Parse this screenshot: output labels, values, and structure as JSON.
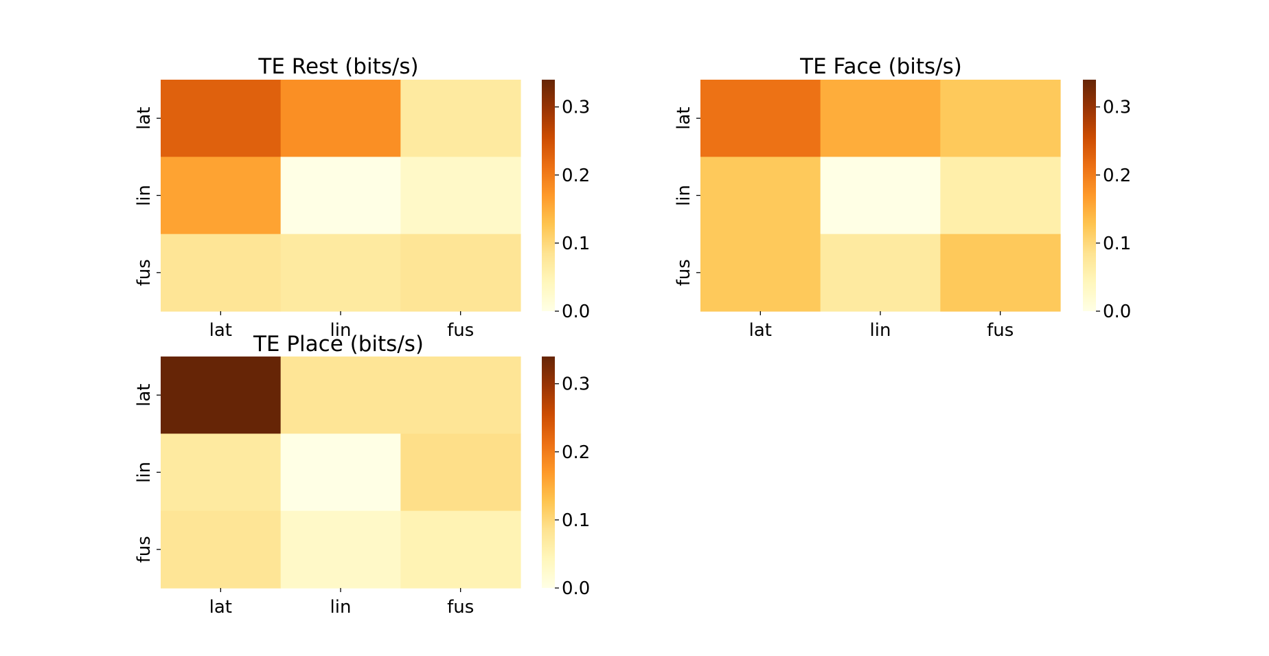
{
  "colormap": {
    "name": "YlOrBr",
    "stops": [
      "#ffffe5",
      "#fff7bc",
      "#fee391",
      "#fec44f",
      "#fe9929",
      "#ec7014",
      "#cc4c02",
      "#993404",
      "#662506"
    ]
  },
  "chart_data": [
    {
      "type": "heatmap",
      "title": "TE Rest (bits/s)",
      "xlabel": "",
      "ylabel": "",
      "x_categories": [
        "lat",
        "lin",
        "fus"
      ],
      "y_categories": [
        "lat",
        "lin",
        "fus"
      ],
      "values": [
        [
          0.23,
          0.18,
          0.07
        ],
        [
          0.16,
          0.0,
          0.03
        ],
        [
          0.08,
          0.07,
          0.08
        ]
      ],
      "colorbar": {
        "vmin": 0.0,
        "vmax": 0.34,
        "ticks": [
          "0.0",
          "0.1",
          "0.2",
          "0.3"
        ]
      }
    },
    {
      "type": "heatmap",
      "title": "TE Face (bits/s)",
      "xlabel": "",
      "ylabel": "",
      "x_categories": [
        "lat",
        "lin",
        "fus"
      ],
      "y_categories": [
        "lat",
        "lin",
        "fus"
      ],
      "values": [
        [
          0.21,
          0.15,
          0.12
        ],
        [
          0.12,
          0.0,
          0.06
        ],
        [
          0.12,
          0.07,
          0.12
        ]
      ],
      "colorbar": {
        "vmin": 0.0,
        "vmax": 0.34,
        "ticks": [
          "0.0",
          "0.1",
          "0.2",
          "0.3"
        ]
      }
    },
    {
      "type": "heatmap",
      "title": "TE Place (bits/s)",
      "xlabel": "",
      "ylabel": "",
      "x_categories": [
        "lat",
        "lin",
        "fus"
      ],
      "y_categories": [
        "lat",
        "lin",
        "fus"
      ],
      "values": [
        [
          0.34,
          0.08,
          0.08
        ],
        [
          0.07,
          0.0,
          0.09
        ],
        [
          0.08,
          0.03,
          0.05
        ]
      ],
      "colorbar": {
        "vmin": 0.0,
        "vmax": 0.34,
        "ticks": [
          "0.0",
          "0.1",
          "0.2",
          "0.3"
        ]
      }
    }
  ]
}
